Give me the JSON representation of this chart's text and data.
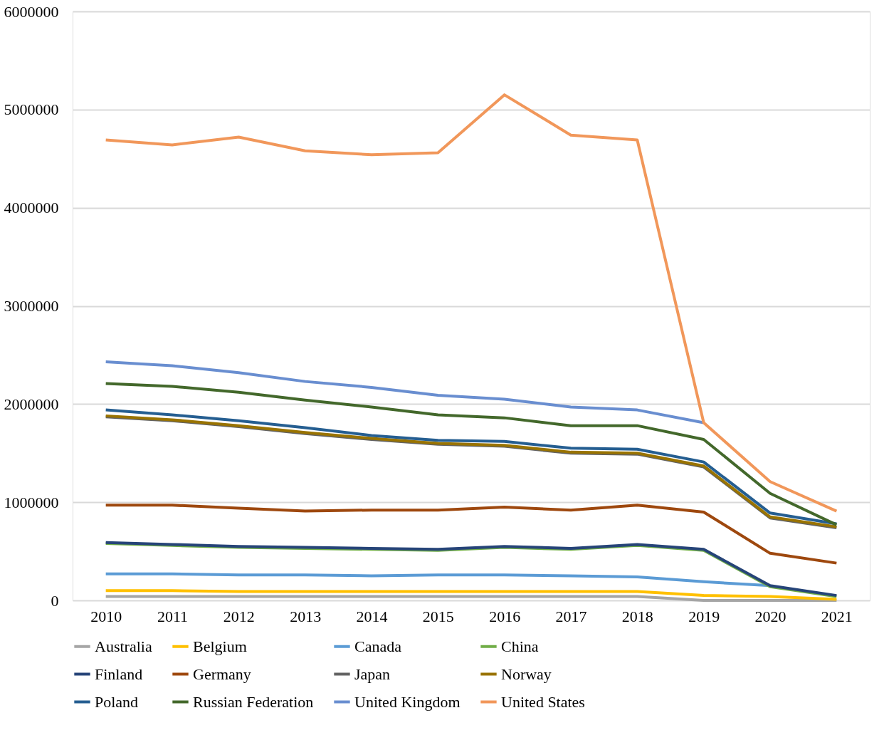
{
  "chart_data": {
    "type": "line",
    "categories": [
      "2010",
      "2011",
      "2012",
      "2013",
      "2014",
      "2015",
      "2016",
      "2017",
      "2018",
      "2019",
      "2020",
      "2021"
    ],
    "ylim": [
      0,
      6000000
    ],
    "yticks": [
      0,
      1000000,
      2000000,
      3000000,
      4000000,
      5000000,
      6000000
    ],
    "grid": "y",
    "legend": "bottom",
    "marker": "none",
    "line_style": "solid",
    "series": [
      {
        "name": "Australia",
        "color": "#a5a5a5",
        "values": [
          40000,
          40000,
          40000,
          40000,
          40000,
          40000,
          40000,
          40000,
          40000,
          0,
          0,
          0
        ]
      },
      {
        "name": "Belgium",
        "color": "#ffc000",
        "values": [
          100000,
          100000,
          90000,
          90000,
          90000,
          90000,
          90000,
          90000,
          90000,
          50000,
          40000,
          10000
        ]
      },
      {
        "name": "Canada",
        "color": "#5b9bd5",
        "values": [
          270000,
          270000,
          260000,
          260000,
          250000,
          260000,
          260000,
          250000,
          240000,
          190000,
          150000,
          null
        ]
      },
      {
        "name": "China",
        "color": "#70ad47",
        "values": [
          580000,
          560000,
          540000,
          530000,
          520000,
          510000,
          540000,
          520000,
          560000,
          510000,
          140000,
          40000
        ]
      },
      {
        "name": "Finland",
        "color": "#264478",
        "values": [
          590000,
          570000,
          550000,
          540000,
          530000,
          520000,
          550000,
          530000,
          570000,
          520000,
          150000,
          50000
        ]
      },
      {
        "name": "Germany",
        "color": "#9e480e",
        "values": [
          970000,
          970000,
          940000,
          910000,
          920000,
          920000,
          950000,
          920000,
          970000,
          900000,
          480000,
          380000
        ]
      },
      {
        "name": "Japan",
        "color": "#636363",
        "values": [
          1870000,
          1830000,
          1770000,
          1700000,
          1640000,
          1590000,
          1570000,
          1500000,
          1490000,
          1360000,
          840000,
          740000
        ]
      },
      {
        "name": "Norway",
        "color": "#997300",
        "values": [
          1880000,
          1840000,
          1780000,
          1710000,
          1650000,
          1600000,
          1580000,
          1510000,
          1500000,
          1370000,
          850000,
          750000
        ]
      },
      {
        "name": "Poland",
        "color": "#255e91",
        "values": [
          1940000,
          1890000,
          1830000,
          1760000,
          1680000,
          1630000,
          1620000,
          1550000,
          1540000,
          1410000,
          890000,
          780000
        ]
      },
      {
        "name": "Russian Federation",
        "color": "#43682b",
        "values": [
          2210000,
          2180000,
          2120000,
          2040000,
          1970000,
          1890000,
          1860000,
          1780000,
          1780000,
          1640000,
          1090000,
          770000
        ]
      },
      {
        "name": "United Kingdom",
        "color": "#698ed0",
        "values": [
          2430000,
          2390000,
          2320000,
          2230000,
          2170000,
          2090000,
          2050000,
          1970000,
          1940000,
          1810000,
          null,
          null
        ]
      },
      {
        "name": "United States",
        "color": "#f1975a",
        "values": [
          4690000,
          4640000,
          4720000,
          4580000,
          4540000,
          4560000,
          5150000,
          4740000,
          4690000,
          1810000,
          1210000,
          910000
        ]
      }
    ]
  }
}
